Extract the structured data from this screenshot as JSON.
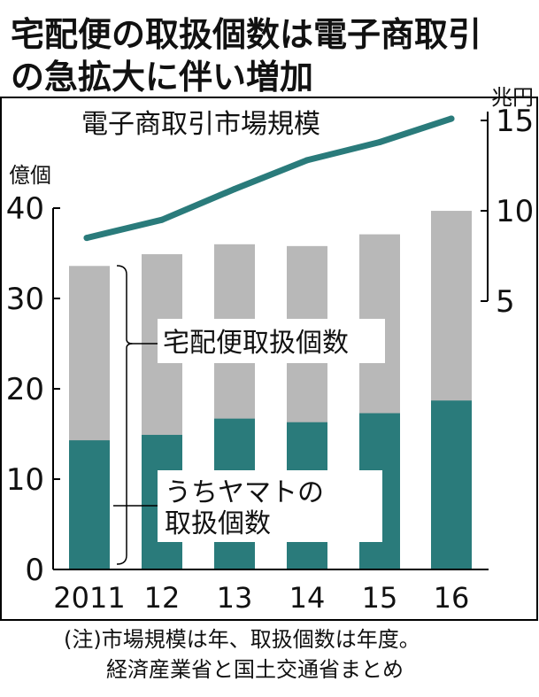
{
  "chart_data": {
    "type": "bar",
    "title": "宅配便の取扱個数は電子商取引の急拡大に伴い増加",
    "title_lines": [
      "宅配便の取扱個数は電子商取引",
      "の急拡大に伴い増加"
    ],
    "categories": [
      "2011",
      "12",
      "13",
      "14",
      "15",
      "16"
    ],
    "series": [
      {
        "name": "宅配便取扱個数",
        "values": [
          33.6,
          34.9,
          36.0,
          35.8,
          37.1,
          39.7
        ],
        "color": "#b8b8b8"
      },
      {
        "name": "うちヤマトの取扱個数",
        "values": [
          14.3,
          14.9,
          16.7,
          16.3,
          17.3,
          18.7
        ],
        "color": "#2a7b7b"
      }
    ],
    "line_series": {
      "name": "電子商取引市場規模",
      "values": [
        8.5,
        9.5,
        11.2,
        12.8,
        13.8,
        15.1
      ],
      "color": "#2a7b7b"
    },
    "left_axis": {
      "label": "億個",
      "ylim": [
        0,
        40
      ],
      "ticks": [
        "0",
        "10",
        "20",
        "30",
        "40"
      ]
    },
    "right_axis": {
      "label": "兆円",
      "ylim": [
        5,
        15
      ],
      "ticks": [
        "5",
        "10",
        "15"
      ]
    },
    "bar_label_total": "宅配便取扱個数",
    "bar_label_yamato": [
      "うちヤマトの",
      "取扱個数"
    ],
    "line_label": "電子商取引市場規模",
    "notes": [
      "(注)市場規模は年、取扱個数は年度。",
      "経済産業省と国土交通省まとめ"
    ],
    "grid": false,
    "legend": "inline"
  }
}
